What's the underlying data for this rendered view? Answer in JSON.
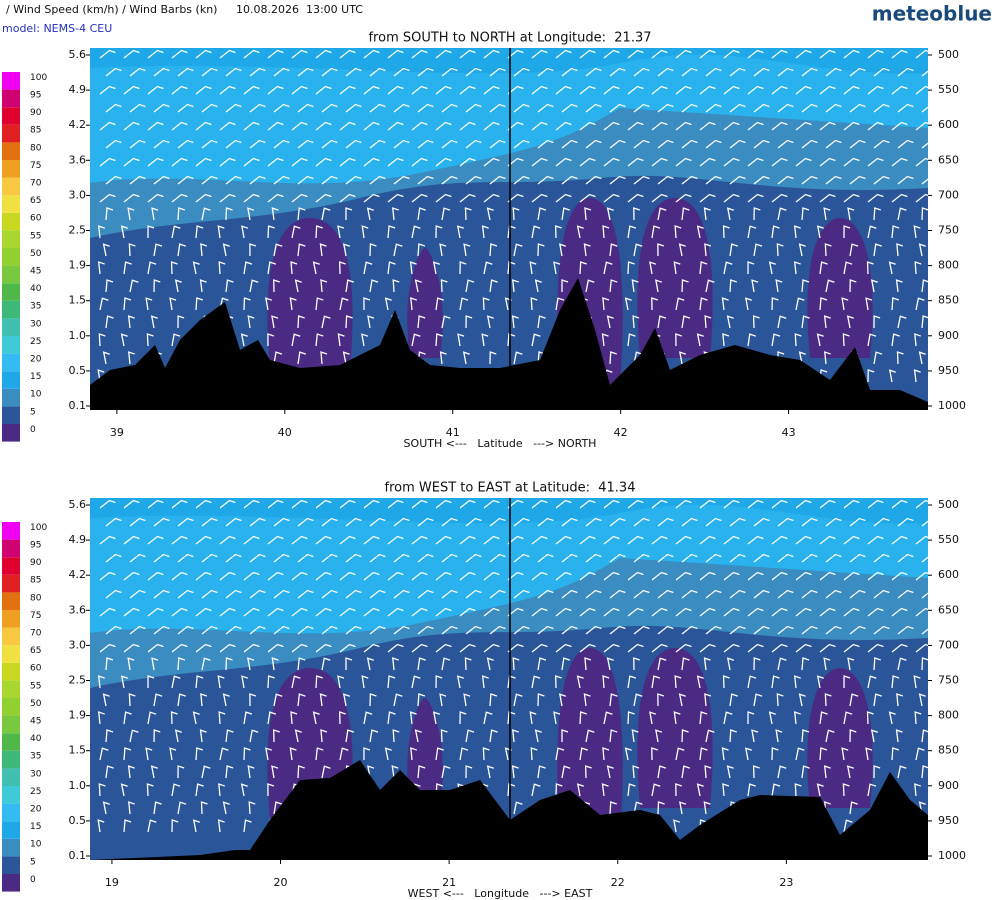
{
  "header": {
    "title": "/ Wind Speed (km/h) / Wind Barbs (kn)",
    "datetime": "10.08.2026  13:00 UTC",
    "brand": "meteoblue",
    "model": "model: NEMS-4 CEU"
  },
  "colorbar": {
    "levels": [
      0,
      5,
      10,
      15,
      20,
      25,
      30,
      35,
      40,
      45,
      50,
      55,
      60,
      65,
      70,
      75,
      80,
      85,
      90,
      95,
      100
    ],
    "colors": [
      "#4b2a83",
      "#2a5598",
      "#3b8cc0",
      "#1ea8e8",
      "#34bcf2",
      "#3fcad8",
      "#40c0b0",
      "#3cb878",
      "#50b848",
      "#78c840",
      "#90d030",
      "#a8d830",
      "#c8d820",
      "#f0e040",
      "#f8c840",
      "#f0a020",
      "#e07010",
      "#e02020",
      "#e00030",
      "#d00070",
      "#f000f0"
    ]
  },
  "chart_data": [
    {
      "type": "contour",
      "title": "from SOUTH to NORTH at Longitude:  21.37",
      "xlabel": "SOUTH <---   Latitude   ---> NORTH",
      "xlim": [
        38.84,
        43.83
      ],
      "xticks": [
        39,
        40,
        41,
        42,
        43
      ],
      "y2lim": [
        500,
        1000
      ],
      "y2ticks": [
        500,
        550,
        600,
        650,
        700,
        750,
        800,
        850,
        900,
        950,
        1000
      ],
      "yticks": [
        {
          "value": 5.6,
          "label": "5.6"
        },
        {
          "value": 4.9,
          "label": "4.9"
        },
        {
          "value": 4.2,
          "label": "4.2"
        },
        {
          "value": 3.6,
          "label": "3.6"
        },
        {
          "value": 3.0,
          "label": "3.0"
        },
        {
          "value": 2.5,
          "label": "2.5"
        },
        {
          "value": 1.9,
          "label": "1.9"
        },
        {
          "value": 1.5,
          "label": "1.5"
        },
        {
          "value": 1.0,
          "label": "1.0"
        },
        {
          "value": 0.5,
          "label": "0.5"
        },
        {
          "value": 0.1,
          "label": "0.1"
        }
      ]
    },
    {
      "type": "contour",
      "title": "from WEST to EAST at Latitude:  41.34",
      "xlabel": "WEST <---   Longitude   ---> EAST",
      "xlim": [
        18.87,
        23.84
      ],
      "xticks": [
        19,
        20,
        21,
        22,
        23
      ],
      "y2lim": [
        500,
        1000
      ],
      "y2ticks": [
        500,
        550,
        600,
        650,
        700,
        750,
        800,
        850,
        900,
        950,
        1000
      ],
      "yticks": [
        {
          "value": 5.6,
          "label": "5.6"
        },
        {
          "value": 4.9,
          "label": "4.9"
        },
        {
          "value": 4.2,
          "label": "4.2"
        },
        {
          "value": 3.6,
          "label": "3.6"
        },
        {
          "value": 3.0,
          "label": "3.0"
        },
        {
          "value": 2.5,
          "label": "2.5"
        },
        {
          "value": 1.9,
          "label": "1.9"
        },
        {
          "value": 1.5,
          "label": "1.5"
        },
        {
          "value": 1.0,
          "label": "1.0"
        },
        {
          "value": 0.5,
          "label": "0.5"
        },
        {
          "value": 0.1,
          "label": "0.1"
        }
      ]
    }
  ]
}
